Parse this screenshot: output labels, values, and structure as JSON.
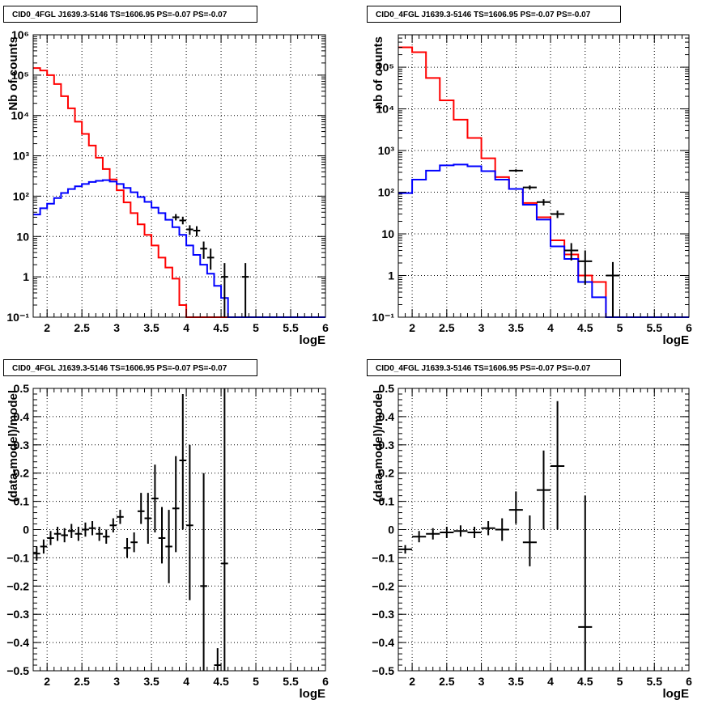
{
  "chart_data": [
    {
      "type": "line",
      "title": "CID0_4FGL J1639.3-5146 TS=1606.95 PS=-0.07 PS=-0.07",
      "xlabel": "logE",
      "ylabel": "Nb of counts",
      "yscale": "log",
      "xlim": [
        1.8,
        6.0
      ],
      "ylim": [
        0.1,
        1000000
      ],
      "grid": true,
      "x_ticks": [
        "2",
        "2.5",
        "3",
        "3.5",
        "4",
        "4.5",
        "5",
        "5.5",
        "6"
      ],
      "y_ticks": [
        "10⁻¹",
        "1",
        "10",
        "10²",
        "10³",
        "10⁴",
        "10⁵",
        "10⁶"
      ],
      "series": [
        {
          "color": "#ff0000",
          "style": "histogram",
          "edges": [
            1.8,
            1.9,
            2.0,
            2.1,
            2.2,
            2.3,
            2.4,
            2.5,
            2.6,
            2.7,
            2.8,
            2.9,
            3.0,
            3.1,
            3.2,
            3.3,
            3.4,
            3.5,
            3.6,
            3.7,
            3.8,
            3.9,
            4.0,
            4.1,
            4.2,
            4.3,
            4.4,
            4.5,
            4.6,
            4.7,
            4.8,
            4.9,
            5.0,
            5.1,
            5.2,
            5.3,
            5.4,
            5.5,
            5.6,
            5.7,
            5.8,
            5.9,
            6.0
          ],
          "values": [
            150000,
            130000,
            100000,
            60000,
            30000,
            15000,
            7000,
            3500,
            1800,
            900,
            470,
            260,
            140,
            70,
            38,
            20,
            11,
            6,
            3,
            1.7,
            0.9,
            0.2,
            0.1,
            0.1,
            0.1,
            0.1,
            0.1,
            0.1,
            0.1,
            0.1,
            0.1,
            0.1,
            0.1,
            0.1,
            0.1,
            0.1,
            0.1,
            0.1,
            0.1,
            0.1,
            0.1,
            0.1
          ]
        },
        {
          "color": "#0000ff",
          "style": "histogram",
          "edges": [
            1.8,
            1.9,
            2.0,
            2.1,
            2.2,
            2.3,
            2.4,
            2.5,
            2.6,
            2.7,
            2.8,
            2.9,
            3.0,
            3.1,
            3.2,
            3.3,
            3.4,
            3.5,
            3.6,
            3.7,
            3.8,
            3.9,
            4.0,
            4.1,
            4.2,
            4.3,
            4.4,
            4.5,
            4.6,
            4.7,
            4.8,
            4.9,
            5.0,
            5.1,
            5.2,
            5.3,
            5.4,
            5.5,
            5.6,
            5.7,
            5.8,
            5.9,
            6.0
          ],
          "values": [
            35,
            50,
            65,
            90,
            120,
            150,
            175,
            200,
            225,
            240,
            250,
            230,
            200,
            160,
            125,
            95,
            72,
            52,
            38,
            26,
            17,
            11,
            6,
            3.5,
            2,
            1.2,
            0.6,
            0.3,
            0.1,
            0.1,
            0.1,
            0.1,
            0.1,
            0.1,
            0.1,
            0.1,
            0.1,
            0.1,
            0.1,
            0.1,
            0.1,
            0.1
          ]
        },
        {
          "color": "#000000",
          "style": "errorbar",
          "points": [
            {
              "x": 3.85,
              "y": 30,
              "xerr": 0.05,
              "ylo": 25,
              "yhi": 36
            },
            {
              "x": 3.95,
              "y": 25,
              "xerr": 0.05,
              "ylo": 20,
              "yhi": 31
            },
            {
              "x": 4.05,
              "y": 15,
              "xerr": 0.05,
              "ylo": 11,
              "yhi": 19
            },
            {
              "x": 4.15,
              "y": 14,
              "xerr": 0.05,
              "ylo": 10,
              "yhi": 18
            },
            {
              "x": 4.25,
              "y": 5,
              "xerr": 0.05,
              "ylo": 2.8,
              "yhi": 7.5
            },
            {
              "x": 4.35,
              "y": 3,
              "xerr": 0.05,
              "ylo": 1.5,
              "yhi": 5
            },
            {
              "x": 4.55,
              "y": 1,
              "xerr": 0.05,
              "ylo": 0.1,
              "yhi": 2.2
            },
            {
              "x": 4.85,
              "y": 1,
              "xerr": 0.05,
              "ylo": 0.1,
              "yhi": 2.2
            }
          ]
        }
      ]
    },
    {
      "type": "line",
      "title": "CID0_4FGL J1639.3-5146 TS=1606.95 PS=-0.07 PS=-0.07",
      "xlabel": "logE",
      "ylabel": "nb of counts",
      "yscale": "log",
      "xlim": [
        1.8,
        6.0
      ],
      "ylim": [
        0.1,
        600000
      ],
      "grid": true,
      "x_ticks": [
        "2",
        "2.5",
        "3",
        "3.5",
        "4",
        "4.5",
        "5",
        "5.5",
        "6"
      ],
      "y_ticks": [
        "10⁻¹",
        "1",
        "10",
        "10²",
        "10³",
        "10⁴",
        "10⁵"
      ],
      "series": [
        {
          "color": "#ff0000",
          "style": "histogram",
          "edges": [
            1.8,
            2.0,
            2.2,
            2.4,
            2.6,
            2.8,
            3.0,
            3.2,
            3.4,
            3.6,
            3.8,
            4.0,
            4.2,
            4.4,
            4.6,
            4.8,
            5.0,
            5.2,
            5.4,
            5.6,
            5.8,
            6.0
          ],
          "values": [
            300000,
            230000,
            55000,
            16000,
            5500,
            2000,
            650,
            230,
            120,
            55,
            25,
            7,
            3.2,
            1,
            0.7,
            0.1,
            0.1,
            0.1,
            0.1,
            0.1,
            0.1
          ]
        },
        {
          "color": "#0000ff",
          "style": "histogram",
          "edges": [
            1.8,
            2.0,
            2.2,
            2.4,
            2.6,
            2.8,
            3.0,
            3.2,
            3.4,
            3.6,
            3.8,
            4.0,
            4.2,
            4.4,
            4.6,
            4.8,
            5.0,
            5.2,
            5.4,
            5.6,
            5.8,
            6.0
          ],
          "values": [
            95,
            200,
            330,
            440,
            460,
            420,
            320,
            200,
            120,
            50,
            22,
            5,
            2.5,
            0.7,
            0.3,
            0.1,
            0.1,
            0.1,
            0.1,
            0.1,
            0.1
          ]
        },
        {
          "color": "#000000",
          "style": "errorbar",
          "points": [
            {
              "x": 3.5,
              "y": 330,
              "xerr": 0.1,
              "ylo": 305,
              "yhi": 355
            },
            {
              "x": 3.7,
              "y": 130,
              "xerr": 0.1,
              "ylo": 115,
              "yhi": 145
            },
            {
              "x": 3.9,
              "y": 58,
              "xerr": 0.1,
              "ylo": 48,
              "yhi": 68
            },
            {
              "x": 4.1,
              "y": 30,
              "xerr": 0.1,
              "ylo": 24,
              "yhi": 36
            },
            {
              "x": 4.3,
              "y": 4,
              "xerr": 0.1,
              "ylo": 2.3,
              "yhi": 6
            },
            {
              "x": 4.5,
              "y": 2.2,
              "xerr": 0.1,
              "ylo": 0.6,
              "yhi": 4
            },
            {
              "x": 4.9,
              "y": 1,
              "xerr": 0.1,
              "ylo": 0.1,
              "yhi": 2.1
            }
          ]
        }
      ]
    },
    {
      "type": "scatter",
      "title": "CID0_4FGL J1639.3-5146 TS=1606.95 PS=-0.07 PS=-0.07",
      "xlabel": "logE",
      "ylabel": "(data-model)/model",
      "xlim": [
        1.8,
        6.0
      ],
      "ylim": [
        -0.5,
        0.5
      ],
      "grid": true,
      "x_ticks": [
        "2",
        "2.5",
        "3",
        "3.5",
        "4",
        "4.5",
        "5",
        "5.5",
        "6"
      ],
      "y_ticks": [
        "−0.5",
        "−0.4",
        "−0.3",
        "−0.2",
        "−0.1",
        "0",
        "0.1",
        "0.2",
        "0.3",
        "0.4",
        "0.5"
      ],
      "series": [
        {
          "color": "#000000",
          "style": "errorbar",
          "points": [
            {
              "x": 1.85,
              "y": -0.085,
              "xerr": 0.05,
              "ylo": -0.11,
              "yhi": -0.06
            },
            {
              "x": 1.95,
              "y": -0.06,
              "xerr": 0.05,
              "ylo": -0.085,
              "yhi": -0.035
            },
            {
              "x": 2.05,
              "y": -0.03,
              "xerr": 0.05,
              "ylo": -0.055,
              "yhi": -0.005
            },
            {
              "x": 2.15,
              "y": -0.015,
              "xerr": 0.05,
              "ylo": -0.04,
              "yhi": 0.01
            },
            {
              "x": 2.25,
              "y": -0.02,
              "xerr": 0.05,
              "ylo": -0.045,
              "yhi": 0.005
            },
            {
              "x": 2.35,
              "y": -0.005,
              "xerr": 0.05,
              "ylo": -0.03,
              "yhi": 0.02
            },
            {
              "x": 2.45,
              "y": -0.015,
              "xerr": 0.05,
              "ylo": -0.04,
              "yhi": 0.01
            },
            {
              "x": 2.55,
              "y": 0.0,
              "xerr": 0.05,
              "ylo": -0.025,
              "yhi": 0.025
            },
            {
              "x": 2.65,
              "y": 0.005,
              "xerr": 0.05,
              "ylo": -0.02,
              "yhi": 0.03
            },
            {
              "x": 2.75,
              "y": -0.015,
              "xerr": 0.05,
              "ylo": -0.04,
              "yhi": 0.01
            },
            {
              "x": 2.85,
              "y": -0.025,
              "xerr": 0.05,
              "ylo": -0.05,
              "yhi": 0.0
            },
            {
              "x": 2.95,
              "y": 0.015,
              "xerr": 0.05,
              "ylo": -0.01,
              "yhi": 0.04
            },
            {
              "x": 3.05,
              "y": 0.045,
              "xerr": 0.05,
              "ylo": 0.02,
              "yhi": 0.07
            },
            {
              "x": 3.15,
              "y": -0.065,
              "xerr": 0.05,
              "ylo": -0.1,
              "yhi": -0.03
            },
            {
              "x": 3.25,
              "y": -0.045,
              "xerr": 0.05,
              "ylo": -0.08,
              "yhi": -0.01
            },
            {
              "x": 3.35,
              "y": 0.065,
              "xerr": 0.05,
              "ylo": 0.02,
              "yhi": 0.13
            },
            {
              "x": 3.45,
              "y": 0.04,
              "xerr": 0.05,
              "ylo": -0.05,
              "yhi": 0.13
            },
            {
              "x": 3.55,
              "y": 0.11,
              "xerr": 0.05,
              "ylo": -0.01,
              "yhi": 0.23
            },
            {
              "x": 3.65,
              "y": -0.03,
              "xerr": 0.05,
              "ylo": -0.12,
              "yhi": 0.08
            },
            {
              "x": 3.75,
              "y": -0.06,
              "xerr": 0.05,
              "ylo": -0.19,
              "yhi": 0.07
            },
            {
              "x": 3.85,
              "y": 0.075,
              "xerr": 0.05,
              "ylo": -0.08,
              "yhi": 0.26
            },
            {
              "x": 3.95,
              "y": 0.245,
              "xerr": 0.05,
              "ylo": 0.0,
              "yhi": 0.48
            },
            {
              "x": 4.05,
              "y": 0.015,
              "xerr": 0.05,
              "ylo": -0.25,
              "yhi": 0.3
            },
            {
              "x": 4.25,
              "y": -0.2,
              "xerr": 0.05,
              "ylo": -0.5,
              "yhi": 0.2
            },
            {
              "x": 4.45,
              "y": -0.48,
              "xerr": 0.05,
              "ylo": -0.5,
              "yhi": -0.42
            },
            {
              "x": 4.55,
              "y": -0.12,
              "xerr": 0.05,
              "ylo": -0.5,
              "yhi": 0.5
            }
          ]
        }
      ]
    },
    {
      "type": "scatter",
      "title": "CID0_4FGL J1639.3-5146 TS=1606.95 PS=-0.07 PS=-0.07",
      "xlabel": "logE",
      "ylabel": "(data-model)/model",
      "xlim": [
        1.8,
        6.0
      ],
      "ylim": [
        -0.5,
        0.5
      ],
      "grid": true,
      "x_ticks": [
        "2",
        "2.5",
        "3",
        "3.5",
        "4",
        "4.5",
        "5",
        "5.5",
        "6"
      ],
      "y_ticks": [
        "−0.5",
        "−0.4",
        "−0.3",
        "−0.2",
        "−0.1",
        "0",
        "0.1",
        "0.2",
        "0.3",
        "0.4",
        "0.5"
      ],
      "series": [
        {
          "color": "#000000",
          "style": "errorbar",
          "points": [
            {
              "x": 1.9,
              "y": -0.07,
              "xerr": 0.1,
              "ylo": -0.085,
              "yhi": -0.055
            },
            {
              "x": 2.1,
              "y": -0.025,
              "xerr": 0.1,
              "ylo": -0.045,
              "yhi": -0.005
            },
            {
              "x": 2.3,
              "y": -0.015,
              "xerr": 0.1,
              "ylo": -0.035,
              "yhi": 0.005
            },
            {
              "x": 2.5,
              "y": -0.01,
              "xerr": 0.1,
              "ylo": -0.03,
              "yhi": 0.01
            },
            {
              "x": 2.7,
              "y": -0.005,
              "xerr": 0.1,
              "ylo": -0.025,
              "yhi": 0.015
            },
            {
              "x": 2.9,
              "y": -0.01,
              "xerr": 0.1,
              "ylo": -0.03,
              "yhi": 0.01
            },
            {
              "x": 3.1,
              "y": 0.005,
              "xerr": 0.1,
              "ylo": -0.02,
              "yhi": 0.03
            },
            {
              "x": 3.3,
              "y": 0.0,
              "xerr": 0.1,
              "ylo": -0.04,
              "yhi": 0.04
            },
            {
              "x": 3.5,
              "y": 0.07,
              "xerr": 0.1,
              "ylo": 0.02,
              "yhi": 0.135
            },
            {
              "x": 3.7,
              "y": -0.045,
              "xerr": 0.1,
              "ylo": -0.13,
              "yhi": 0.05
            },
            {
              "x": 3.9,
              "y": 0.14,
              "xerr": 0.1,
              "ylo": 0.0,
              "yhi": 0.28
            },
            {
              "x": 4.1,
              "y": 0.225,
              "xerr": 0.1,
              "ylo": 0.0,
              "yhi": 0.455
            },
            {
              "x": 4.5,
              "y": -0.345,
              "xerr": 0.1,
              "ylo": -0.5,
              "yhi": 0.12
            }
          ]
        }
      ]
    }
  ]
}
